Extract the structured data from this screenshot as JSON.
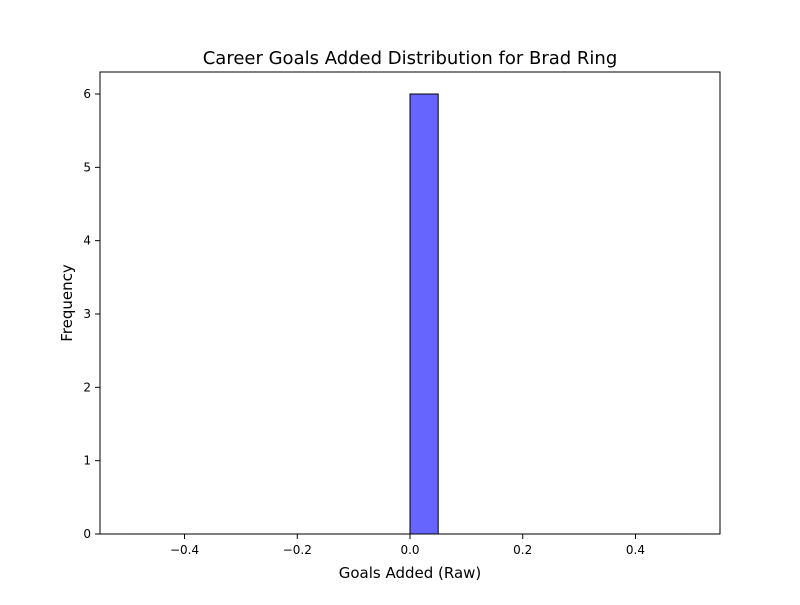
{
  "chart_data": {
    "type": "bar",
    "title": "Career Goals Added Distribution for Brad Ring",
    "xlabel": "Goals Added (Raw)",
    "ylabel": "Frequency",
    "xlim": [
      -0.55,
      0.55
    ],
    "ylim": [
      0,
      6.3
    ],
    "x_ticks": [
      -0.4,
      -0.2,
      0.0,
      0.2,
      0.4
    ],
    "y_ticks": [
      0,
      1,
      2,
      3,
      4,
      5,
      6
    ],
    "bins": [
      {
        "start": -0.5,
        "end": -0.45,
        "count": 0
      },
      {
        "start": -0.45,
        "end": -0.4,
        "count": 0
      },
      {
        "start": -0.4,
        "end": -0.35,
        "count": 0
      },
      {
        "start": -0.35,
        "end": -0.3,
        "count": 0
      },
      {
        "start": -0.3,
        "end": -0.25,
        "count": 0
      },
      {
        "start": -0.25,
        "end": -0.2,
        "count": 0
      },
      {
        "start": -0.2,
        "end": -0.15,
        "count": 0
      },
      {
        "start": -0.15,
        "end": -0.1,
        "count": 0
      },
      {
        "start": -0.1,
        "end": -0.05,
        "count": 0
      },
      {
        "start": -0.05,
        "end": 0.0,
        "count": 0
      },
      {
        "start": 0.0,
        "end": 0.05,
        "count": 6
      },
      {
        "start": 0.05,
        "end": 0.1,
        "count": 0
      },
      {
        "start": 0.1,
        "end": 0.15,
        "count": 0
      },
      {
        "start": 0.15,
        "end": 0.2,
        "count": 0
      },
      {
        "start": 0.2,
        "end": 0.25,
        "count": 0
      },
      {
        "start": 0.25,
        "end": 0.3,
        "count": 0
      },
      {
        "start": 0.3,
        "end": 0.35,
        "count": 0
      },
      {
        "start": 0.35,
        "end": 0.4,
        "count": 0
      },
      {
        "start": 0.4,
        "end": 0.45,
        "count": 0
      },
      {
        "start": 0.45,
        "end": 0.5,
        "count": 0
      }
    ],
    "grid": false,
    "bar_color": "#6666ff",
    "edge_color": "#000000"
  }
}
